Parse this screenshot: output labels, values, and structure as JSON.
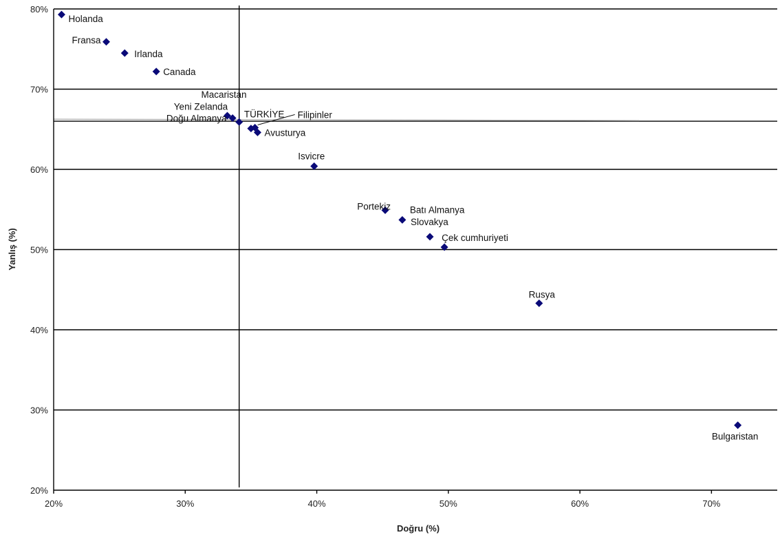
{
  "chart_data": {
    "type": "scatter",
    "title": "",
    "xlabel": "Doğru (%)",
    "ylabel": "Yanlış (%)",
    "xlim": [
      20,
      75
    ],
    "ylim": [
      20,
      80
    ],
    "x_ticks": [
      {
        "value": 20,
        "label": "20%"
      },
      {
        "value": 30,
        "label": "30%"
      },
      {
        "value": 40,
        "label": "40%"
      },
      {
        "value": 50,
        "label": "50%"
      },
      {
        "value": 60,
        "label": "60%"
      },
      {
        "value": 70,
        "label": "70%"
      }
    ],
    "y_ticks": [
      {
        "value": 20,
        "label": "20%"
      },
      {
        "value": 30,
        "label": "30%"
      },
      {
        "value": 40,
        "label": "40%"
      },
      {
        "value": 50,
        "label": "50%"
      },
      {
        "value": 60,
        "label": "60%"
      },
      {
        "value": 70,
        "label": "70%"
      },
      {
        "value": 80,
        "label": "80%"
      }
    ],
    "grid": "horizontal",
    "reference_lines": {
      "x": 34.1,
      "y": 66
    },
    "marker_color": "#0a0a78",
    "points": [
      {
        "label": "Holanda",
        "x": 20.6,
        "y": 79.3
      },
      {
        "label": "Fransa",
        "x": 24.0,
        "y": 75.9
      },
      {
        "label": "Irlanda",
        "x": 25.4,
        "y": 74.5
      },
      {
        "label": "Canada",
        "x": 27.8,
        "y": 72.2
      },
      {
        "label": "Macaristan",
        "x": 33.2,
        "y": 66.7
      },
      {
        "label": "Yeni Zelanda",
        "x": 33.6,
        "y": 66.4
      },
      {
        "label": "Doğu Almanya",
        "x": 34.1,
        "y": 65.9
      },
      {
        "label": "TÜRKİYE",
        "x": 35.0,
        "y": 65.1
      },
      {
        "label": "Filipinler",
        "x": 35.3,
        "y": 65.2
      },
      {
        "label": "Avusturya",
        "x": 35.5,
        "y": 64.6
      },
      {
        "label": "Isvicre",
        "x": 39.8,
        "y": 60.4
      },
      {
        "label": "Portekiz",
        "x": 45.2,
        "y": 54.9
      },
      {
        "label": "Batı Almanya",
        "x": 46.5,
        "y": 53.7
      },
      {
        "label": "Slovakya",
        "x": 48.6,
        "y": 51.6
      },
      {
        "label": "Çek cumhuriyeti",
        "x": 49.7,
        "y": 50.3
      },
      {
        "label": "Rusya",
        "x": 56.9,
        "y": 43.3
      },
      {
        "label": "Bulgaristan",
        "x": 72.0,
        "y": 28.1
      }
    ]
  }
}
